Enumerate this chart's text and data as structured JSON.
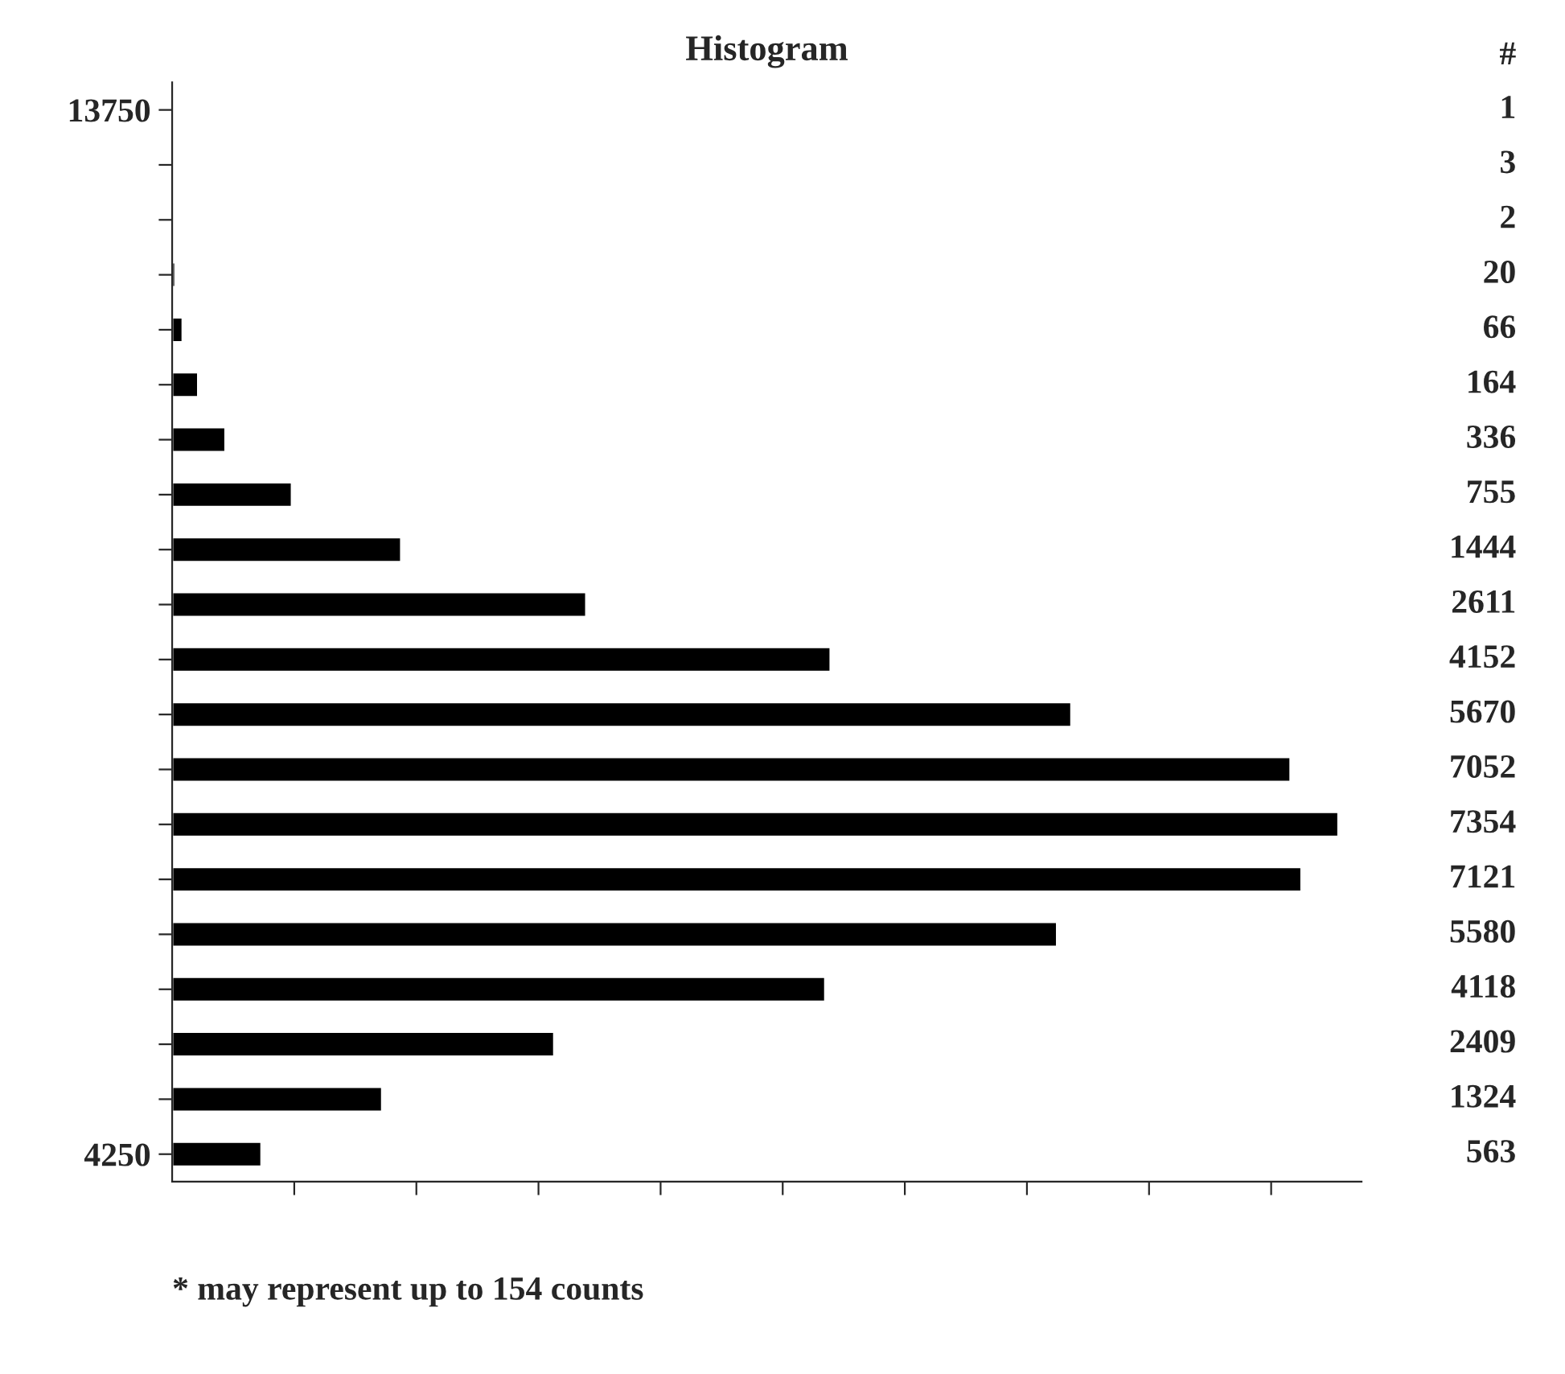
{
  "chart_data": {
    "type": "bar",
    "orientation": "horizontal",
    "title": "Histogram",
    "categories": [
      "13750",
      null,
      null,
      null,
      null,
      null,
      null,
      null,
      null,
      null,
      null,
      null,
      null,
      null,
      null,
      null,
      null,
      null,
      null,
      "4250"
    ],
    "values": [
      1,
      3,
      2,
      20,
      66,
      164,
      336,
      755,
      1444,
      2611,
      4152,
      5670,
      7052,
      7354,
      7121,
      5580,
      4118,
      2409,
      1324,
      563
    ],
    "color": "#000000",
    "data_labels": true,
    "xlim": [
      0,
      7500
    ],
    "xticks": [
      {
        "value": 770,
        "label": null
      },
      {
        "value": 1540,
        "label": null
      },
      {
        "value": 2310,
        "label": null
      },
      {
        "value": 3080,
        "label": null
      },
      {
        "value": 3850,
        "label": null
      },
      {
        "value": 4620,
        "label": null
      },
      {
        "value": 5390,
        "label": null
      },
      {
        "value": 6160,
        "label": null
      },
      {
        "value": 6930,
        "label": null
      }
    ],
    "annotations": [
      "#",
      "* may represent up to 154 counts"
    ],
    "grid": false,
    "legend": false
  }
}
